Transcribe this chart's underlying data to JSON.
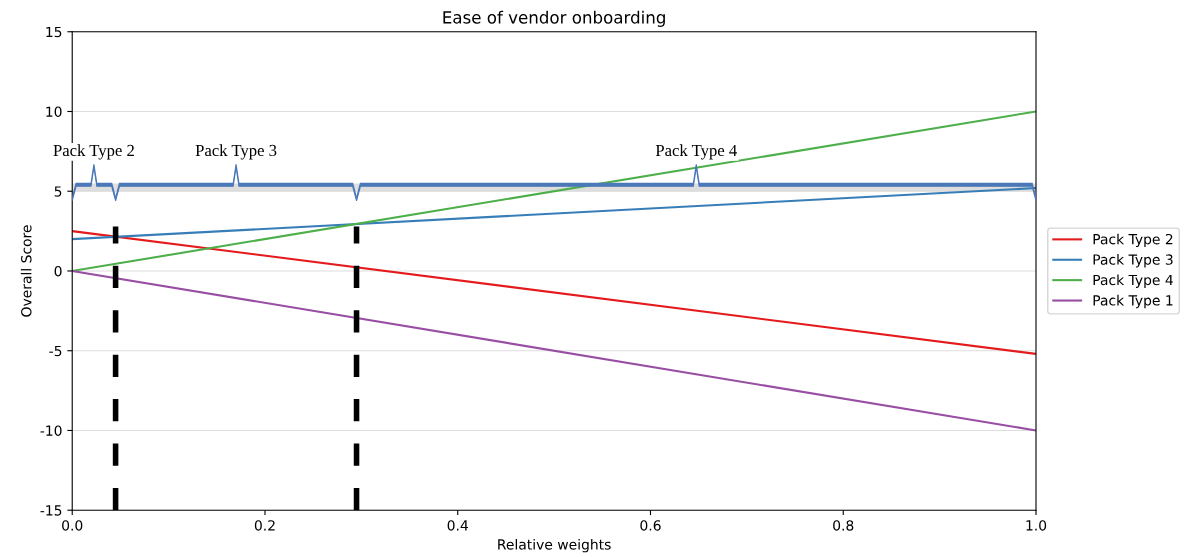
{
  "chart_data": {
    "type": "line",
    "title": "Ease of vendor onboarding",
    "xlabel": "Relative weights",
    "ylabel": "Overall Score",
    "x": [
      0,
      1
    ],
    "series": [
      {
        "name": "Pack Type 2",
        "color": "#e41a1c",
        "values": [
          2.5,
          -5.2
        ]
      },
      {
        "name": "Pack Type 3",
        "color": "#377eb8",
        "values": [
          2.0,
          5.2
        ]
      },
      {
        "name": "Pack Type 4",
        "color": "#4daf4a",
        "values": [
          0,
          10
        ]
      },
      {
        "name": "Pack Type 1",
        "color": "#984ea3",
        "values": [
          0,
          -10
        ]
      }
    ],
    "xlim": [
      0,
      1
    ],
    "ylim": [
      -15,
      15
    ],
    "xticks": [
      {
        "value": 0,
        "label": "0.0"
      },
      0.2,
      0.4,
      0.6,
      0.8,
      {
        "value": 1,
        "label": "1.0"
      }
    ],
    "yticks": [
      -15,
      -10,
      -5,
      0,
      5,
      10,
      15
    ],
    "ref_lines": [
      {
        "axis": "x",
        "value": 0.045,
        "color": "#000000",
        "line_style": "dashed"
      },
      {
        "axis": "x",
        "value": 0.295,
        "color": "#000000",
        "line_style": "dashed"
      }
    ],
    "annotations": [
      "Pack Type 2",
      "Pack Type 3",
      "Pack Type 4"
    ],
    "grid": "y",
    "legend": "right",
    "marker": "none",
    "line_style": "solid"
  }
}
